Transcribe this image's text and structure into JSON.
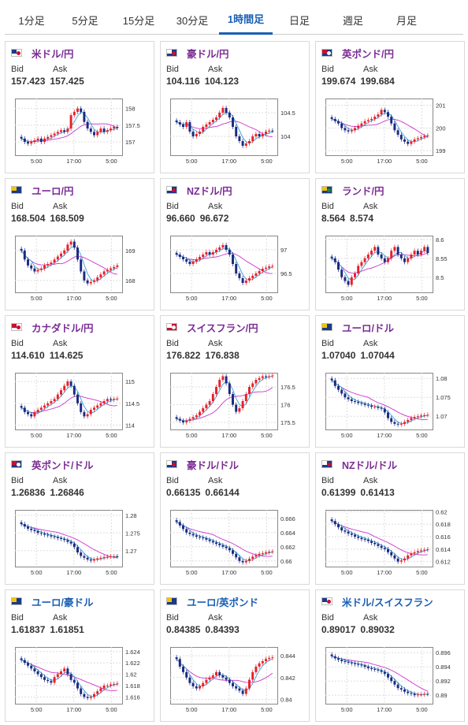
{
  "tabs": [
    {
      "label": "1分足",
      "active": false
    },
    {
      "label": "5分足",
      "active": false
    },
    {
      "label": "15分足",
      "active": false
    },
    {
      "label": "30分足",
      "active": false
    },
    {
      "label": "1時間足",
      "active": true
    },
    {
      "label": "日足",
      "active": false
    },
    {
      "label": "週足",
      "active": false
    },
    {
      "label": "月足",
      "active": false
    }
  ],
  "bid_label": "Bid",
  "ask_label": "Ask",
  "x_ticks": [
    "5:00",
    "17:00",
    "5:00"
  ],
  "colors": {
    "up": "#e8202a",
    "down": "#1a2a80",
    "ma_short": "#3aa0d8",
    "ma_long": "#cc33cc",
    "purple_title": "#7b2b95",
    "blue_title": "#1a5fb4"
  },
  "cards": [
    {
      "name": "usd-jpy",
      "pair": "米ドル/円",
      "flag": "us",
      "bid": "157.423",
      "ask": "157.425",
      "title_color": "purple",
      "chart_data": {
        "type": "candlestick",
        "ylim": [
          156.6,
          158.3
        ],
        "yticks": [
          "158",
          "157.5",
          "157"
        ],
        "ytick_values": [
          158,
          157.5,
          157
        ],
        "close": [
          157.1,
          157.0,
          156.95,
          157.0,
          157.05,
          157.1,
          157.0,
          157.1,
          157.15,
          157.2,
          157.25,
          157.3,
          157.35,
          157.3,
          157.4,
          157.8,
          157.9,
          158.0,
          157.9,
          157.6,
          157.4,
          157.3,
          157.2,
          157.3,
          157.4,
          157.3,
          157.35,
          157.4,
          157.45,
          157.42
        ]
      }
    },
    {
      "name": "aud-jpy",
      "pair": "豪ドル/円",
      "flag": "au",
      "bid": "104.116",
      "ask": "104.123",
      "title_color": "purple",
      "chart_data": {
        "type": "candlestick",
        "ylim": [
          103.6,
          104.8
        ],
        "yticks": [
          "104.5",
          "104"
        ],
        "ytick_values": [
          104.5,
          104
        ],
        "close": [
          104.3,
          104.25,
          104.2,
          104.3,
          104.1,
          104.0,
          104.05,
          104.1,
          104.2,
          104.25,
          104.3,
          104.35,
          104.4,
          104.5,
          104.6,
          104.5,
          104.4,
          104.2,
          104.0,
          103.9,
          103.8,
          103.85,
          103.9,
          104.0,
          104.05,
          104.0,
          104.05,
          104.1,
          104.12,
          104.116
        ]
      }
    },
    {
      "name": "gbp-jpy",
      "pair": "英ポンド/円",
      "flag": "gb",
      "bid": "199.674",
      "ask": "199.684",
      "title_color": "purple",
      "chart_data": {
        "type": "candlestick",
        "ylim": [
          198.8,
          201.3
        ],
        "yticks": [
          "201",
          "200",
          "199"
        ],
        "ytick_values": [
          201,
          200,
          199
        ],
        "close": [
          200.4,
          200.3,
          200.2,
          200.0,
          199.9,
          199.85,
          199.9,
          200.0,
          200.1,
          200.2,
          200.3,
          200.35,
          200.4,
          200.5,
          200.6,
          200.8,
          200.7,
          200.5,
          200.2,
          199.9,
          199.7,
          199.5,
          199.4,
          199.3,
          199.4,
          199.5,
          199.55,
          199.6,
          199.65,
          199.674
        ]
      }
    },
    {
      "name": "eur-jpy",
      "pair": "ユーロ/円",
      "flag": "eu",
      "bid": "168.504",
      "ask": "168.509",
      "title_color": "purple",
      "chart_data": {
        "type": "candlestick",
        "ylim": [
          167.6,
          169.5
        ],
        "yticks": [
          "169",
          "168"
        ],
        "ytick_values": [
          169,
          168
        ],
        "close": [
          169.0,
          168.7,
          168.5,
          168.4,
          168.3,
          168.35,
          168.4,
          168.5,
          168.55,
          168.6,
          168.7,
          168.8,
          168.9,
          169.0,
          169.2,
          169.3,
          169.1,
          168.7,
          168.3,
          168.0,
          167.9,
          167.95,
          168.0,
          168.1,
          168.2,
          168.3,
          168.35,
          168.4,
          168.45,
          168.504
        ]
      }
    },
    {
      "name": "nzd-jpy",
      "pair": "NZドル/円",
      "flag": "nz",
      "bid": "96.660",
      "ask": "96.672",
      "title_color": "purple",
      "chart_data": {
        "type": "candlestick",
        "ylim": [
          96.1,
          97.3
        ],
        "yticks": [
          "97",
          "96.5"
        ],
        "ytick_values": [
          97,
          96.5
        ],
        "close": [
          96.9,
          96.85,
          96.8,
          96.75,
          96.7,
          96.75,
          96.8,
          96.85,
          96.9,
          96.95,
          96.9,
          96.95,
          97.0,
          97.05,
          97.1,
          97.0,
          96.9,
          96.7,
          96.5,
          96.4,
          96.3,
          96.35,
          96.4,
          96.45,
          96.5,
          96.55,
          96.6,
          96.62,
          96.65,
          96.66
        ]
      }
    },
    {
      "name": "zar-jpy",
      "pair": "ランド/円",
      "flag": "za",
      "bid": "8.564",
      "ask": "8.574",
      "title_color": "purple",
      "chart_data": {
        "type": "candlestick",
        "ylim": [
          8.46,
          8.61
        ],
        "yticks": [
          "8.6",
          "8.55",
          "8.5"
        ],
        "ytick_values": [
          8.6,
          8.55,
          8.5
        ],
        "close": [
          8.55,
          8.54,
          8.52,
          8.5,
          8.49,
          8.48,
          8.5,
          8.51,
          8.53,
          8.54,
          8.55,
          8.56,
          8.57,
          8.58,
          8.56,
          8.55,
          8.54,
          8.55,
          8.57,
          8.58,
          8.56,
          8.55,
          8.54,
          8.55,
          8.56,
          8.57,
          8.56,
          8.57,
          8.58,
          8.564
        ]
      }
    },
    {
      "name": "cad-jpy",
      "pair": "カナダドル/円",
      "flag": "ca",
      "bid": "114.610",
      "ask": "114.625",
      "title_color": "purple",
      "chart_data": {
        "type": "candlestick",
        "ylim": [
          113.9,
          115.2
        ],
        "yticks": [
          "115",
          "114.5",
          "114"
        ],
        "ytick_values": [
          115,
          114.5,
          114
        ],
        "close": [
          114.4,
          114.3,
          114.25,
          114.2,
          114.3,
          114.35,
          114.4,
          114.45,
          114.5,
          114.55,
          114.6,
          114.7,
          114.8,
          114.9,
          115.0,
          114.9,
          114.7,
          114.5,
          114.3,
          114.2,
          114.25,
          114.35,
          114.4,
          114.45,
          114.5,
          114.55,
          114.6,
          114.58,
          114.6,
          114.61
        ]
      }
    },
    {
      "name": "chf-jpy",
      "pair": "スイスフラン/円",
      "flag": "ch",
      "bid": "176.822",
      "ask": "176.838",
      "title_color": "purple",
      "chart_data": {
        "type": "candlestick",
        "ylim": [
          175.3,
          176.9
        ],
        "yticks": [
          "176.5",
          "176",
          "175.5"
        ],
        "ytick_values": [
          176.5,
          176,
          175.5
        ],
        "close": [
          175.6,
          175.55,
          175.5,
          175.55,
          175.6,
          175.65,
          175.7,
          175.8,
          175.9,
          176.0,
          176.1,
          176.3,
          176.5,
          176.7,
          176.8,
          176.6,
          176.3,
          176.0,
          175.8,
          175.9,
          176.1,
          176.3,
          176.5,
          176.6,
          176.7,
          176.75,
          176.8,
          176.78,
          176.8,
          176.822
        ]
      }
    },
    {
      "name": "eur-usd",
      "pair": "ユーロ/ドル",
      "flag": "eu",
      "bid": "1.07040",
      "ask": "1.07044",
      "title_color": "purple",
      "chart_data": {
        "type": "candlestick",
        "ylim": [
          1.0665,
          1.0815
        ],
        "yticks": [
          "1.08",
          "1.075",
          "1.07"
        ],
        "ytick_values": [
          1.08,
          1.075,
          1.07
        ],
        "close": [
          1.0795,
          1.078,
          1.077,
          1.076,
          1.075,
          1.0745,
          1.074,
          1.0738,
          1.0735,
          1.0733,
          1.073,
          1.0728,
          1.0725,
          1.0725,
          1.0722,
          1.072,
          1.071,
          1.0695,
          1.0685,
          1.068,
          1.0678,
          1.068,
          1.0685,
          1.069,
          1.0695,
          1.0698,
          1.07,
          1.0702,
          1.0703,
          1.0704
        ]
      }
    },
    {
      "name": "gbp-usd",
      "pair": "英ポンド/ドル",
      "flag": "gb",
      "bid": "1.26836",
      "ask": "1.26846",
      "title_color": "purple",
      "chart_data": {
        "type": "candlestick",
        "ylim": [
          1.2655,
          1.2815
        ],
        "yticks": [
          "1.28",
          "1.275",
          "1.27"
        ],
        "ytick_values": [
          1.28,
          1.275,
          1.27
        ],
        "close": [
          1.2775,
          1.2768,
          1.2762,
          1.2758,
          1.2755,
          1.275,
          1.2748,
          1.2745,
          1.2743,
          1.274,
          1.2738,
          1.2735,
          1.2733,
          1.273,
          1.2725,
          1.272,
          1.271,
          1.2695,
          1.2685,
          1.268,
          1.2675,
          1.2672,
          1.2675,
          1.2678,
          1.268,
          1.2682,
          1.2683,
          1.2684,
          1.2684,
          1.26836
        ]
      }
    },
    {
      "name": "aud-usd",
      "pair": "豪ドル/ドル",
      "flag": "au",
      "bid": "0.66135",
      "ask": "0.66144",
      "title_color": "purple",
      "chart_data": {
        "type": "candlestick",
        "ylim": [
          0.6592,
          0.6672
        ],
        "yticks": [
          "0.666",
          "0.664",
          "0.662",
          "0.66"
        ],
        "ytick_values": [
          0.666,
          0.664,
          0.662,
          0.66
        ],
        "close": [
          0.6655,
          0.665,
          0.6645,
          0.664,
          0.6638,
          0.6636,
          0.6634,
          0.6633,
          0.6632,
          0.663,
          0.6628,
          0.6626,
          0.6624,
          0.6622,
          0.662,
          0.6618,
          0.6615,
          0.661,
          0.6605,
          0.66,
          0.6598,
          0.66,
          0.6603,
          0.6606,
          0.6608,
          0.661,
          0.6611,
          0.6612,
          0.6613,
          0.66135
        ]
      }
    },
    {
      "name": "nzd-usd",
      "pair": "NZドル/ドル",
      "flag": "nz",
      "bid": "0.61399",
      "ask": "0.61413",
      "title_color": "purple",
      "chart_data": {
        "type": "candlestick",
        "ylim": [
          0.6112,
          0.6203
        ],
        "yticks": [
          "0.62",
          "0.618",
          "0.616",
          "0.614",
          "0.612"
        ],
        "ytick_values": [
          0.62,
          0.618,
          0.616,
          0.614,
          0.612
        ],
        "close": [
          0.6185,
          0.618,
          0.6175,
          0.617,
          0.6168,
          0.6165,
          0.6163,
          0.616,
          0.6158,
          0.6156,
          0.6155,
          0.6153,
          0.615,
          0.6148,
          0.6145,
          0.6142,
          0.614,
          0.6135,
          0.613,
          0.6125,
          0.612,
          0.6122,
          0.6125,
          0.613,
          0.6133,
          0.6135,
          0.6137,
          0.6138,
          0.6139,
          0.61399
        ]
      }
    },
    {
      "name": "eur-aud",
      "pair": "ユーロ/豪ドル",
      "flag": "eu",
      "bid": "1.61837",
      "ask": "1.61851",
      "title_color": "blue",
      "chart_data": {
        "type": "candlestick",
        "ylim": [
          1.6148,
          1.6248
        ],
        "yticks": [
          "1.624",
          "1.622",
          "1.62",
          "1.618",
          "1.616"
        ],
        "ytick_values": [
          1.624,
          1.622,
          1.62,
          1.618,
          1.616
        ],
        "close": [
          1.6225,
          1.622,
          1.6215,
          1.621,
          1.6205,
          1.62,
          1.6195,
          1.619,
          1.6188,
          1.6185,
          1.6195,
          1.62,
          1.6205,
          1.621,
          1.62,
          1.619,
          1.6185,
          1.6175,
          1.6165,
          1.616,
          1.6158,
          1.616,
          1.6165,
          1.617,
          1.6175,
          1.618,
          1.618,
          1.6182,
          1.6183,
          1.61837
        ]
      }
    },
    {
      "name": "eur-gbp",
      "pair": "ユーロ/英ポンド",
      "flag": "eu",
      "bid": "0.84385",
      "ask": "0.84393",
      "title_color": "blue",
      "chart_data": {
        "type": "candlestick",
        "ylim": [
          0.8396,
          0.8448
        ],
        "yticks": [
          "0.844",
          "0.842",
          "0.84"
        ],
        "ytick_values": [
          0.844,
          0.842,
          0.84
        ],
        "close": [
          0.8437,
          0.843,
          0.8425,
          0.842,
          0.8415,
          0.8412,
          0.841,
          0.8412,
          0.8415,
          0.8418,
          0.842,
          0.8422,
          0.8425,
          0.8422,
          0.842,
          0.8418,
          0.8415,
          0.8412,
          0.841,
          0.8408,
          0.8405,
          0.841,
          0.8418,
          0.8425,
          0.843,
          0.8433,
          0.8435,
          0.8437,
          0.8438,
          0.84385
        ]
      }
    },
    {
      "name": "usd-chf",
      "pair": "米ドル/スイスフラン",
      "flag": "us",
      "bid": "0.89017",
      "ask": "0.89032",
      "title_color": "blue",
      "chart_data": {
        "type": "candlestick",
        "ylim": [
          0.8888,
          0.8968
        ],
        "yticks": [
          "0.896",
          "0.894",
          "0.892",
          "0.89"
        ],
        "ytick_values": [
          0.896,
          0.894,
          0.892,
          0.89
        ],
        "close": [
          0.8955,
          0.8952,
          0.895,
          0.8948,
          0.8947,
          0.8946,
          0.8945,
          0.8944,
          0.8943,
          0.8942,
          0.894,
          0.8938,
          0.8937,
          0.8936,
          0.8935,
          0.8933,
          0.893,
          0.8925,
          0.892,
          0.8915,
          0.891,
          0.8908,
          0.8905,
          0.8903,
          0.8902,
          0.89,
          0.8901,
          0.8901,
          0.8902,
          0.89017
        ]
      }
    }
  ]
}
